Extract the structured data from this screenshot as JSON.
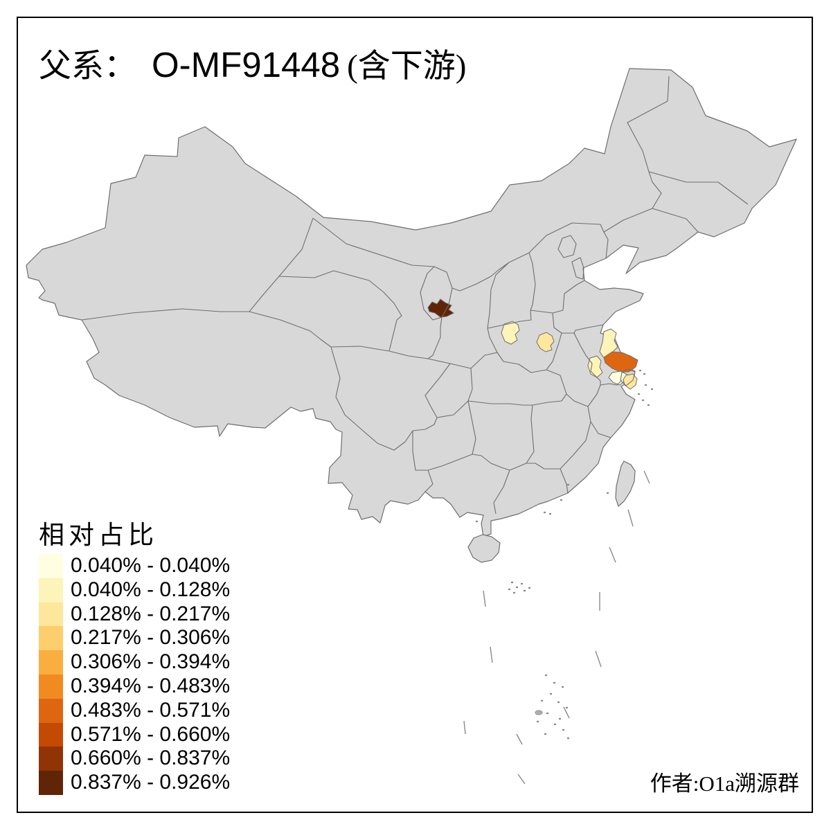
{
  "title": {
    "prefix": "父系：",
    "code": "O-MF91448",
    "suffix": "(含下游)"
  },
  "legend": {
    "title": "相对占比",
    "classes": [
      {
        "label": "0.040% - 0.040%",
        "color": "#FFFEE0"
      },
      {
        "label": "0.040% - 0.128%",
        "color": "#FCF4B8"
      },
      {
        "label": "0.128% - 0.217%",
        "color": "#FDE79C"
      },
      {
        "label": "0.217% - 0.306%",
        "color": "#FDCF6C"
      },
      {
        "label": "0.306% - 0.394%",
        "color": "#FBAE40"
      },
      {
        "label": "0.394% - 0.483%",
        "color": "#F28A22"
      },
      {
        "label": "0.483% - 0.571%",
        "color": "#DE6610"
      },
      {
        "label": "0.571% - 0.660%",
        "color": "#C44A04"
      },
      {
        "label": "0.660% - 0.837%",
        "color": "#903305"
      },
      {
        "label": "0.837% - 0.926%",
        "color": "#5F2506"
      }
    ]
  },
  "credit": "作者:O1a溯源群",
  "map": {
    "land_color": "#D8D8D8",
    "border_color": "#6E6E6E",
    "background": "#FFFFFF",
    "regions": [
      {
        "name": "south-ningxia",
        "value_range": "0.837% - 0.926%",
        "color": "#5F2506"
      },
      {
        "name": "west-henan",
        "value_range": "0.040% - 0.128%",
        "color": "#FCF4B8"
      },
      {
        "name": "central-henan",
        "value_range": "0.128% - 0.217%",
        "color": "#FDE79C"
      },
      {
        "name": "north-jiangsu",
        "value_range": "0.040% - 0.128%",
        "color": "#FCF4B8"
      },
      {
        "name": "east-jiangsu-yancheng",
        "value_range": "0.483% - 0.571%",
        "color": "#DE6610"
      },
      {
        "name": "west-jiangsu",
        "value_range": "0.040% - 0.128%",
        "color": "#FCF4B8"
      },
      {
        "name": "south-jiangsu",
        "value_range": "0.040% - 0.040%",
        "color": "#FFFEE0"
      },
      {
        "name": "southeast-jiangsu-nantong",
        "value_range": "0.128% - 0.217%",
        "color": "#FDE79C"
      }
    ]
  }
}
